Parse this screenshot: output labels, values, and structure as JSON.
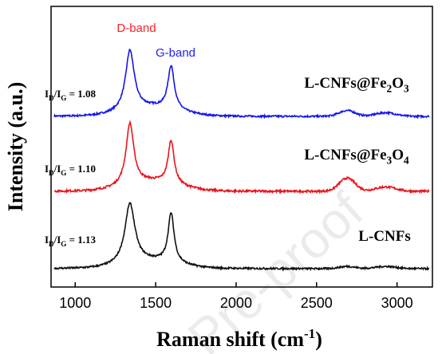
{
  "chart_data": {
    "type": "line",
    "xlabel": "Raman shift (cm",
    "xlabel_sup": "-1",
    "xlabel_end": ")",
    "ylabel": "Intensity (a.u.)",
    "xlim": [
      850,
      3220
    ],
    "x_ticks": [
      1000,
      1500,
      2000,
      2500,
      3000
    ],
    "y_ticks_shown": false,
    "band_labels": [
      {
        "text": "D-band",
        "color": "#ff2020"
      },
      {
        "text": "G-band",
        "color": "#2222ee"
      }
    ],
    "series": [
      {
        "name": "L-CNFs@Fe2O3",
        "name_parts": [
          [
            "L-CNFs@Fe",
            ""
          ],
          [
            "2",
            "sub"
          ],
          [
            "O",
            ""
          ],
          [
            "3",
            "sub"
          ]
        ],
        "ratio_parts": [
          [
            "I",
            ""
          ],
          [
            "D",
            "sub"
          ],
          [
            "/I",
            ""
          ],
          [
            "G",
            "sub"
          ],
          [
            " = 1.08",
            ""
          ]
        ],
        "color": "#1414f0",
        "offset": 2.0,
        "d_height": 0.82,
        "d_width": 65,
        "g_height": 0.59,
        "g_width": 48,
        "bg_height": 0.12,
        "d2_height": 0.08,
        "gd_height": 0.05,
        "noise": 0.012
      },
      {
        "name": "L-CNFs@Fe3O4",
        "name_parts": [
          [
            "L-CNFs@Fe",
            ""
          ],
          [
            "3",
            "sub"
          ],
          [
            "O",
            ""
          ],
          [
            "4",
            "sub"
          ]
        ],
        "ratio_parts": [
          [
            "I",
            ""
          ],
          [
            "D",
            "sub"
          ],
          [
            "/I",
            ""
          ],
          [
            "G",
            "sub"
          ],
          [
            " = 1.10",
            ""
          ]
        ],
        "color": "#e8141c",
        "offset": 1.0,
        "d_height": 0.84,
        "d_width": 58,
        "g_height": 0.59,
        "g_width": 45,
        "bg_height": 0.13,
        "d2_height": 0.18,
        "gd_height": 0.06,
        "noise": 0.014
      },
      {
        "name": "L-CNFs",
        "name_parts": [
          [
            "L-CNFs",
            ""
          ]
        ],
        "ratio_parts": [
          [
            "I",
            ""
          ],
          [
            "D",
            "sub"
          ],
          [
            "/I",
            ""
          ],
          [
            "G",
            "sub"
          ],
          [
            " = 1.13",
            ""
          ]
        ],
        "color": "#111111",
        "offset": 0.0,
        "d_height": 0.82,
        "d_width": 75,
        "g_height": 0.67,
        "g_width": 45,
        "bg_height": 0.1,
        "d2_height": 0.03,
        "gd_height": 0.03,
        "noise": 0.012
      }
    ],
    "peaks": {
      "D": 1340,
      "G": 1596,
      "2D": 2690,
      "G+D": 2930
    }
  },
  "watermark": "Pre-proof"
}
